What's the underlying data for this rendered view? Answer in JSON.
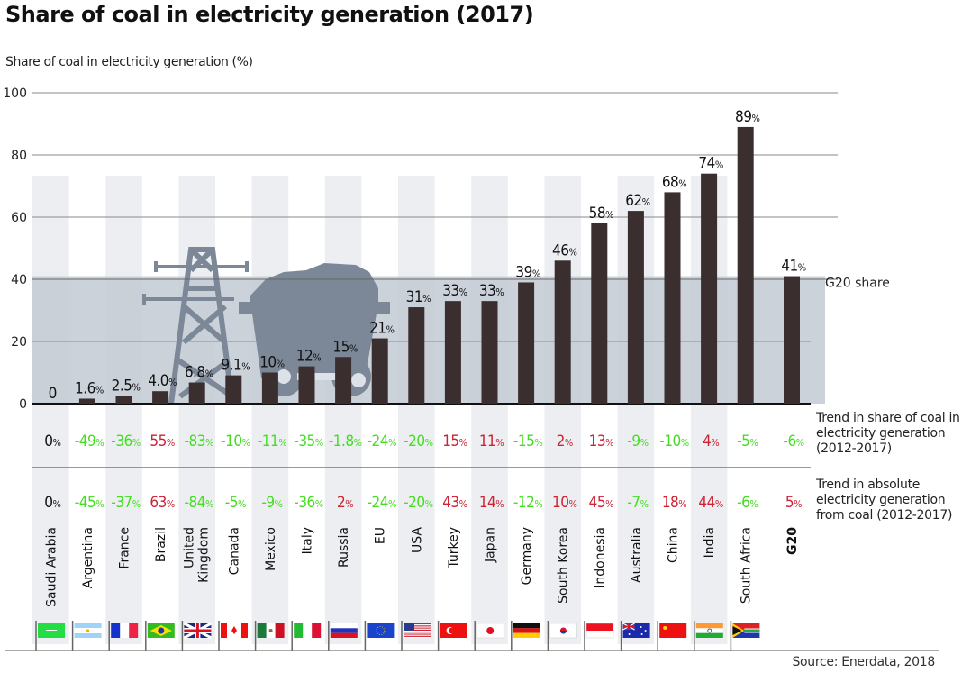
{
  "title": "Share of coal in electricity generation (2017)",
  "source": "Source: Enerdata, 2018",
  "colors": {
    "bar": "#3a2e2e",
    "shade": "#c3cad3",
    "stripe": "#eceef1",
    "positive_trend": "#cc2233",
    "negative_trend": "#44dd22",
    "neutral": "#111111",
    "illustration": "#7c8898"
  },
  "row_labels": {
    "share_trend": [
      "Trend in share of coal in",
      "electricity generation",
      "(2012-2017)"
    ],
    "absolute_trend": [
      "Trend in absolute",
      "electricity generation",
      "from coal (2012-2017)"
    ]
  },
  "chart_data": {
    "type": "bar",
    "title": "Share of coal in electricity generation (2017)",
    "ylabel": "Share of coal in electricity generation (%)",
    "xlabel": "",
    "ylim": [
      0,
      100
    ],
    "yticks": [
      0,
      20,
      40,
      60,
      80,
      100
    ],
    "grid": true,
    "reference_line": {
      "label": "G20 share",
      "value": 41
    },
    "categories": [
      "Saudi Arabia",
      "Argentina",
      "France",
      "Brazil",
      "United Kingdom",
      "Canada",
      "Mexico",
      "Italy",
      "Russia",
      "EU",
      "USA",
      "Turkey",
      "Japan",
      "Germany",
      "South Korea",
      "Indonesia",
      "Australia",
      "China",
      "India",
      "South Africa",
      "G20"
    ],
    "values": [
      0,
      1.6,
      2.5,
      4.0,
      6.8,
      9.1,
      10,
      12,
      15,
      21,
      31,
      33,
      33,
      39,
      46,
      58,
      62,
      68,
      74,
      89,
      41
    ],
    "value_labels": [
      "0",
      "1.6",
      "2.5",
      "4.0",
      "6.8",
      "9.1",
      "10",
      "12",
      "15",
      "21",
      "31",
      "33",
      "33",
      "39",
      "46",
      "58",
      "62",
      "68",
      "74",
      "89",
      "41"
    ],
    "share_trend_2012_2017": [
      0,
      -49,
      -36,
      55,
      -83,
      -10,
      -11,
      -35,
      -1.8,
      -24,
      -20,
      15,
      11,
      -15,
      2,
      13,
      -9,
      -10,
      4,
      -5,
      -6
    ],
    "absolute_trend_2012_2017": [
      0,
      -45,
      -37,
      63,
      -84,
      -5,
      -9,
      -36,
      2,
      -24,
      -20,
      43,
      14,
      -12,
      10,
      45,
      -7,
      18,
      44,
      -6,
      5
    ],
    "flags": [
      "saudi-arabia-flag",
      "argentina-flag",
      "france-flag",
      "brazil-flag",
      "uk-flag",
      "canada-flag",
      "mexico-flag",
      "italy-flag",
      "russia-flag",
      "eu-flag",
      "usa-flag",
      "turkey-flag",
      "japan-flag",
      "germany-flag",
      "south-korea-flag",
      "indonesia-flag",
      "australia-flag",
      "china-flag",
      "india-flag",
      "south-africa-flag",
      ""
    ]
  }
}
